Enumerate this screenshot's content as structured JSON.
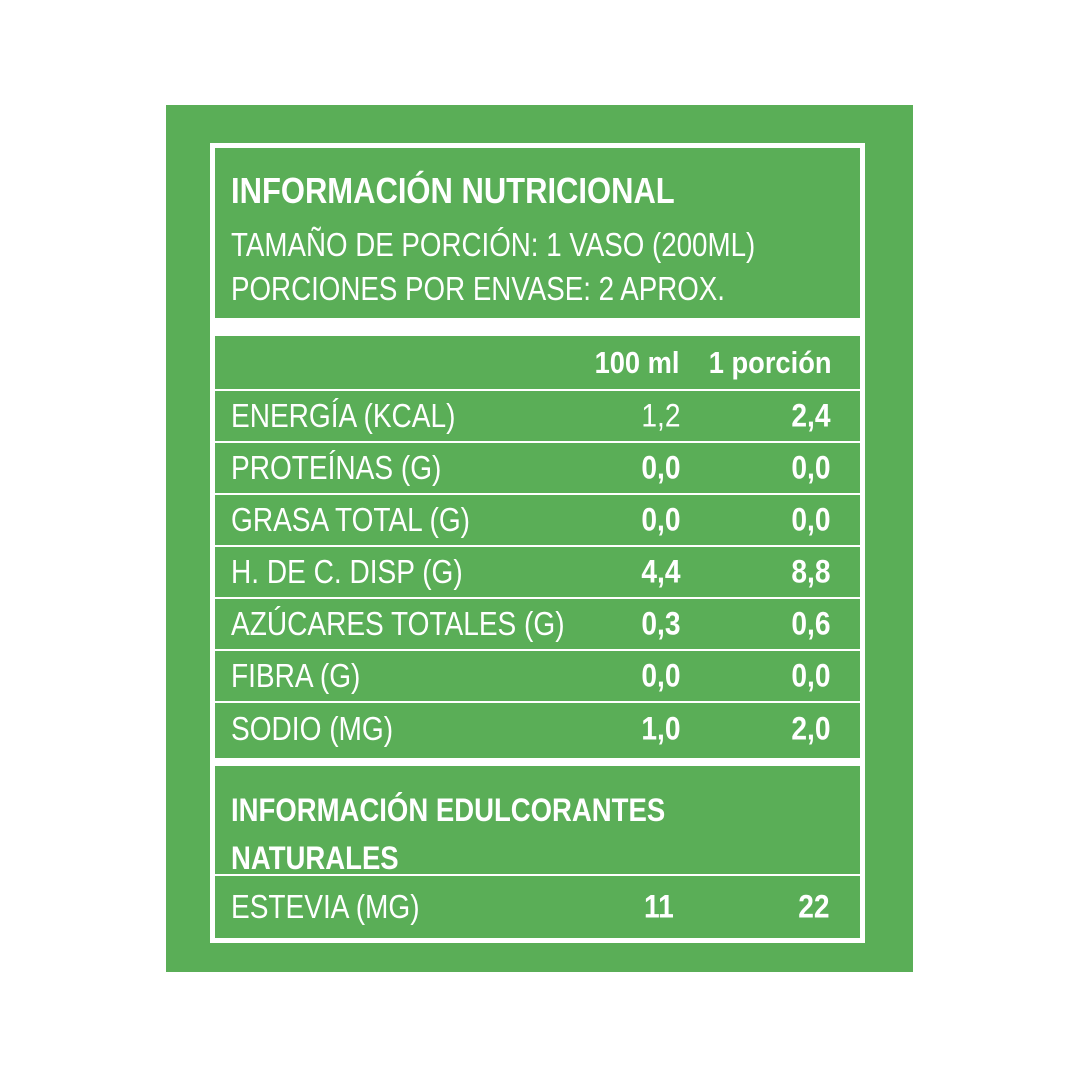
{
  "header": {
    "title": "INFORMACIÓN NUTRICIONAL",
    "serving_size": "TAMAÑO DE PORCIÓN: 1 VASO (200ML)",
    "servings_per_container": "PORCIONES POR ENVASE: 2 APROX."
  },
  "columns": [
    "100 ml",
    "1 porción"
  ],
  "rows": [
    {
      "label": "ENERGÍA (KCAL)",
      "per100": "1,2",
      "perServing": "2,4"
    },
    {
      "label": "PROTEÍNAS (G)",
      "per100": "0,0",
      "perServing": "0,0"
    },
    {
      "label": "GRASA TOTAL (G)",
      "per100": "0,0",
      "perServing": "0,0"
    },
    {
      "label": "H. DE C. DISP (G)",
      "per100": "4,4",
      "perServing": "8,8"
    },
    {
      "label": "AZÚCARES TOTALES (G)",
      "per100": "0,3",
      "perServing": "0,6"
    },
    {
      "label": "FIBRA (G)",
      "per100": "0,0",
      "perServing": "0,0"
    },
    {
      "label": "SODIO (MG)",
      "per100": "1,0",
      "perServing": "2,0"
    }
  ],
  "sweeteners": {
    "title_line1": "INFORMACIÓN EDULCORANTES",
    "title_line2": "NATURALES",
    "rows": [
      {
        "label": "ESTEVIA (MG)",
        "per100": "11",
        "perServing": "22"
      }
    ]
  },
  "colors": {
    "background": "#5aae57",
    "lines": "#ffffff",
    "text": "#ffffff"
  }
}
